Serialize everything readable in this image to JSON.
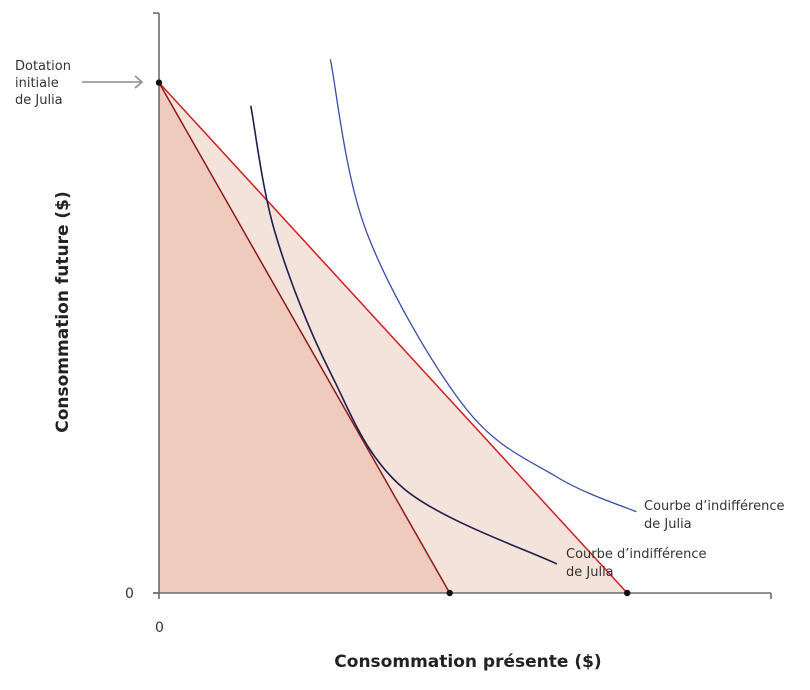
{
  "chart_data": {
    "type": "line",
    "title": "",
    "xlabel": "Consommation présente ($)",
    "ylabel": "Consommation future ($)",
    "x_tick_labels": [
      "0"
    ],
    "y_tick_labels": [
      "0"
    ],
    "xlim": [
      0,
      100
    ],
    "ylim": [
      0,
      100
    ],
    "grid": false,
    "endowment": {
      "x": 0,
      "y": 88,
      "label_lines": [
        "Dotation",
        "initiale",
        "de Julia"
      ]
    },
    "budget_constraints": [
      {
        "name": "steep",
        "from": [
          0,
          88
        ],
        "to": [
          47.5,
          0
        ],
        "color": "#8b1a1a",
        "fill": "#efcbbd"
      },
      {
        "name": "flat",
        "from": [
          0,
          88
        ],
        "to": [
          76.5,
          0
        ],
        "color": "#d0201f",
        "fill": "#f4e3da"
      }
    ],
    "series": [
      {
        "name": "Courbe d'indifférence de Julia (inner)",
        "color": "#1f1f4f",
        "label_lines": [
          "Courbe d’indifférence",
          "de Julia"
        ],
        "points": [
          [
            15,
            84
          ],
          [
            19,
            62
          ],
          [
            28,
            38
          ],
          [
            40,
            18
          ],
          [
            65,
            5
          ]
        ]
      },
      {
        "name": "Courbe d'indifférence de Julia (outer)",
        "color": "#3a4ca3",
        "label_lines": [
          "Courbe d’indifférence",
          "de Julia"
        ],
        "points": [
          [
            28,
            92
          ],
          [
            34,
            62
          ],
          [
            50,
            32
          ],
          [
            65,
            20
          ],
          [
            78,
            14
          ]
        ]
      }
    ],
    "points": [
      {
        "x": 0,
        "y": 88
      },
      {
        "x": 47.5,
        "y": 0
      },
      {
        "x": 76.5,
        "y": 0
      }
    ]
  }
}
